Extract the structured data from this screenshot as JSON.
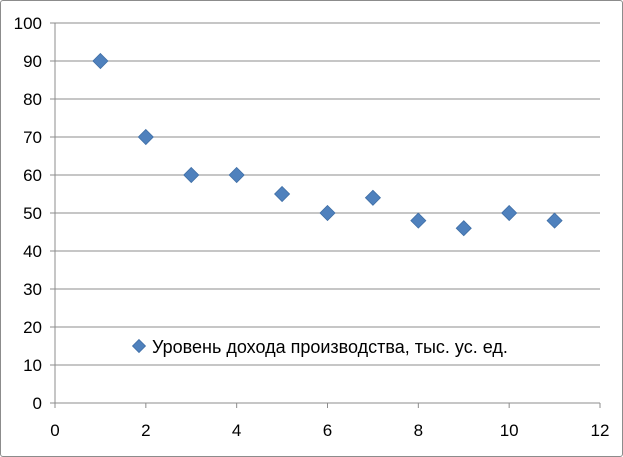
{
  "chart_data": {
    "type": "scatter",
    "title": "",
    "xlabel": "",
    "ylabel": "",
    "xlim": [
      0,
      12
    ],
    "ylim": [
      0,
      100
    ],
    "x_ticks": [
      0,
      2,
      4,
      6,
      8,
      10,
      12
    ],
    "y_ticks": [
      0,
      10,
      20,
      30,
      40,
      50,
      60,
      70,
      80,
      90,
      100
    ],
    "grid": "horizontal",
    "legend_position": "inside-center-lower",
    "series": [
      {
        "name": "Уровень дохода производства, тыс. ус. ед.",
        "marker": "diamond",
        "color": "#4f81bd",
        "x": [
          1,
          2,
          3,
          4,
          5,
          6,
          7,
          8,
          9,
          10,
          11
        ],
        "y": [
          90,
          70,
          60,
          60,
          55,
          50,
          54,
          48,
          46,
          50,
          48
        ]
      }
    ]
  }
}
